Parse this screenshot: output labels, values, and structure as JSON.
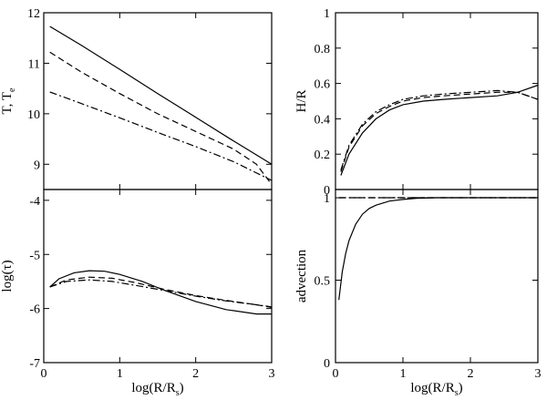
{
  "chart_data": [
    {
      "id": "tl",
      "type": "line",
      "ylabel": "T, T",
      "ylabel_sub": "e",
      "xlabel": "",
      "xlim": [
        0,
        3
      ],
      "ylim": [
        8.5,
        12
      ],
      "yticks": [
        9,
        10,
        11,
        12
      ],
      "ytick_labels": [
        "9",
        "10",
        "11",
        "12"
      ],
      "xticks": [
        0,
        1,
        2,
        3
      ],
      "xtick_labels": [],
      "series": [
        {
          "name": "solid",
          "style": "solid",
          "x": [
            0.08,
            0.5,
            1,
            1.5,
            2,
            2.5,
            3
          ],
          "y": [
            11.73,
            11.35,
            10.88,
            10.4,
            9.93,
            9.46,
            9.0
          ]
        },
        {
          "name": "dashed",
          "style": "dashed",
          "x": [
            0.08,
            0.5,
            1,
            1.5,
            2,
            2.5,
            2.8,
            3
          ],
          "y": [
            11.22,
            10.82,
            10.4,
            10.0,
            9.65,
            9.3,
            9.0,
            8.6
          ]
        },
        {
          "name": "dash-dot",
          "style": "dashdot",
          "x": [
            0.08,
            0.5,
            1,
            1.5,
            2,
            2.5,
            3
          ],
          "y": [
            10.43,
            10.2,
            9.92,
            9.63,
            9.35,
            9.05,
            8.68
          ]
        }
      ]
    },
    {
      "id": "bl",
      "type": "line",
      "ylabel": "log(τ)",
      "xlabel": "log(R/R",
      "xlabel_sub": "s",
      "xlabel_end": ")",
      "xlim": [
        0,
        3
      ],
      "ylim": [
        -7,
        -3.8
      ],
      "yticks": [
        -7,
        -6,
        -5,
        -4
      ],
      "ytick_labels": [
        "-7",
        "-6",
        "-5",
        "-4"
      ],
      "xticks": [
        0,
        1,
        2,
        3
      ],
      "xtick_labels": [
        "0",
        "1",
        "2",
        "3"
      ],
      "series": [
        {
          "name": "solid",
          "style": "solid",
          "x": [
            0.08,
            0.2,
            0.4,
            0.6,
            0.8,
            1.0,
            1.3,
            1.6,
            2.0,
            2.4,
            2.8,
            3.0
          ],
          "y": [
            -5.6,
            -5.45,
            -5.34,
            -5.3,
            -5.31,
            -5.37,
            -5.5,
            -5.67,
            -5.87,
            -6.02,
            -6.1,
            -6.1
          ]
        },
        {
          "name": "dashed",
          "style": "dashed",
          "x": [
            0.08,
            0.3,
            0.6,
            0.9,
            1.2,
            1.6,
            2.0,
            2.4,
            2.8,
            3.0
          ],
          "y": [
            -5.6,
            -5.47,
            -5.42,
            -5.44,
            -5.52,
            -5.65,
            -5.76,
            -5.85,
            -5.93,
            -5.98
          ]
        },
        {
          "name": "dash-dot",
          "style": "dashdot",
          "x": [
            0.08,
            0.3,
            0.6,
            0.9,
            1.2,
            1.6,
            2.0,
            2.4,
            2.8,
            3.0
          ],
          "y": [
            -5.6,
            -5.5,
            -5.47,
            -5.5,
            -5.57,
            -5.67,
            -5.77,
            -5.86,
            -5.93,
            -5.97
          ]
        }
      ]
    },
    {
      "id": "tr",
      "type": "line",
      "ylabel": "H/R",
      "xlabel": "",
      "xlim": [
        0,
        3
      ],
      "ylim": [
        0,
        1
      ],
      "yticks": [
        0,
        0.2,
        0.4,
        0.6,
        0.8,
        1
      ],
      "ytick_labels": [
        "0",
        "0.2",
        "0.4",
        "0.6",
        "0.8",
        "1"
      ],
      "xticks": [
        0,
        1,
        2,
        3
      ],
      "xtick_labels": [],
      "series": [
        {
          "name": "solid",
          "style": "solid",
          "x": [
            0.08,
            0.2,
            0.4,
            0.6,
            0.8,
            1.0,
            1.3,
            1.6,
            2.0,
            2.4,
            2.7,
            3.0
          ],
          "y": [
            0.08,
            0.2,
            0.32,
            0.4,
            0.45,
            0.48,
            0.5,
            0.51,
            0.52,
            0.53,
            0.55,
            0.59
          ]
        },
        {
          "name": "dashed",
          "style": "dashed",
          "x": [
            0.08,
            0.2,
            0.4,
            0.6,
            0.8,
            1.0,
            1.3,
            1.6,
            2.0,
            2.4,
            2.7,
            3.0
          ],
          "y": [
            0.1,
            0.24,
            0.36,
            0.43,
            0.47,
            0.5,
            0.52,
            0.53,
            0.54,
            0.55,
            0.55,
            0.51
          ]
        },
        {
          "name": "dash-dot",
          "style": "dashdot",
          "x": [
            0.08,
            0.2,
            0.4,
            0.6,
            0.8,
            1.0,
            1.3,
            1.6,
            2.0,
            2.4,
            2.7,
            3.0
          ],
          "y": [
            0.11,
            0.25,
            0.37,
            0.44,
            0.48,
            0.51,
            0.53,
            0.54,
            0.55,
            0.56,
            0.55,
            0.51
          ]
        }
      ]
    },
    {
      "id": "br",
      "type": "line",
      "ylabel": "advection",
      "xlabel": "log(R/R",
      "xlabel_sub": "s",
      "xlabel_end": ")",
      "xlim": [
        0,
        3
      ],
      "ylim": [
        0,
        1.05
      ],
      "yticks": [
        0,
        0.5,
        1
      ],
      "ytick_labels": [
        "0",
        "0.5",
        "1"
      ],
      "xticks": [
        0,
        1,
        2,
        3
      ],
      "xtick_labels": [
        "0",
        "1",
        "2",
        "3"
      ],
      "series": [
        {
          "name": "solid",
          "style": "solid",
          "x": [
            0.05,
            0.1,
            0.15,
            0.2,
            0.3,
            0.4,
            0.5,
            0.6,
            0.8,
            1.0,
            1.2,
            1.5,
            2.0,
            2.5,
            3.0
          ],
          "y": [
            0.38,
            0.55,
            0.66,
            0.74,
            0.84,
            0.9,
            0.935,
            0.955,
            0.98,
            0.99,
            0.997,
            1.0,
            1.0,
            1.0,
            1.0
          ]
        },
        {
          "name": "dashed",
          "style": "dashed",
          "x": [
            0.05,
            3.0
          ],
          "y": [
            1.0,
            1.0
          ]
        },
        {
          "name": "dash-dot",
          "style": "dashdot",
          "x": [
            0.05,
            3.0
          ],
          "y": [
            1.0,
            1.0
          ]
        }
      ]
    }
  ]
}
